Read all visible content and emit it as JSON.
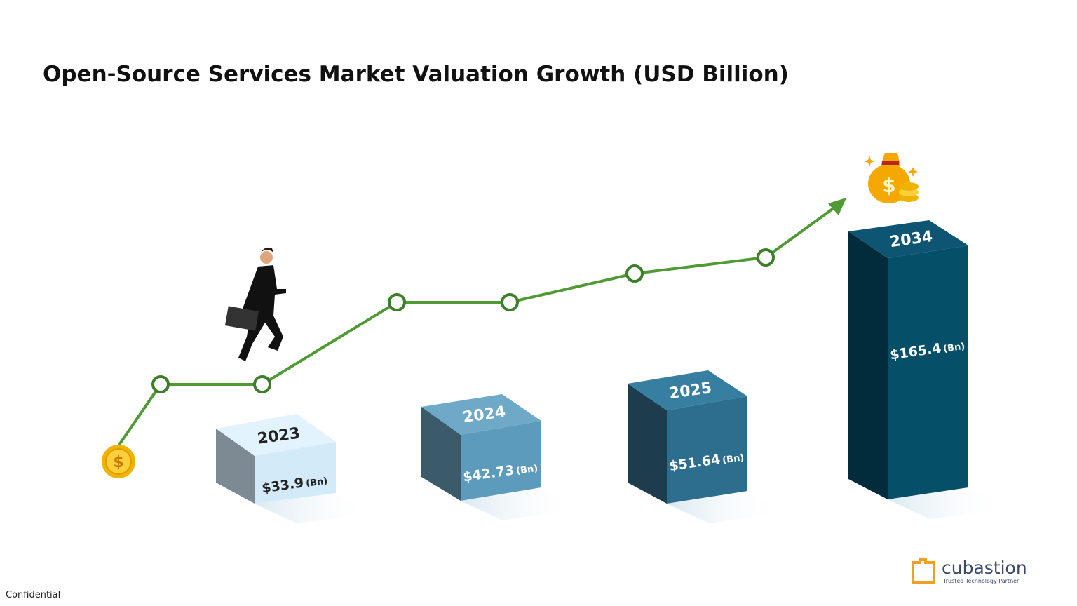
{
  "title": "Open-Source Services Market Valuation Growth (USD Billion)",
  "bars": [
    {
      "year": "2023",
      "value": "$33.9",
      "unit": "(Bn)"
    },
    {
      "year": "2024",
      "value": "$42.73",
      "unit": "(Bn)"
    },
    {
      "year": "2025",
      "value": "$51.64",
      "unit": "(Bn)"
    },
    {
      "year": "2034",
      "value": "$165.4",
      "unit": "(Bn)"
    }
  ],
  "footer": {
    "confidential": "Confidential"
  },
  "logo": {
    "name": "cubastion",
    "tagline": "Trusted Technology Partner"
  }
}
